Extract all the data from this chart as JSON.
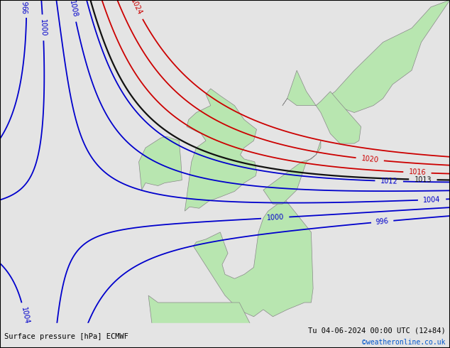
{
  "title_left": "Surface pressure [hPa] ECMWF",
  "title_right": "Tu 04-06-2024 00:00 UTC (12+84)",
  "credit": "©weatheronline.co.uk",
  "bg_color": "#e4e4e4",
  "land_color": "#b8e6b0",
  "border_color": "#888888",
  "font_color_blue": "#0000cc",
  "font_color_black": "#111111",
  "font_color_red": "#cc0000",
  "isobars_blue": [
    996,
    1000,
    1004,
    1008,
    1012
  ],
  "isobars_black": [
    1013
  ],
  "isobars_red": [
    1016,
    1020,
    1024
  ],
  "figsize": [
    6.34,
    4.9
  ],
  "dpi": 100,
  "lon_min": -25,
  "lon_max": 22,
  "lat_min": 42,
  "lat_max": 65
}
